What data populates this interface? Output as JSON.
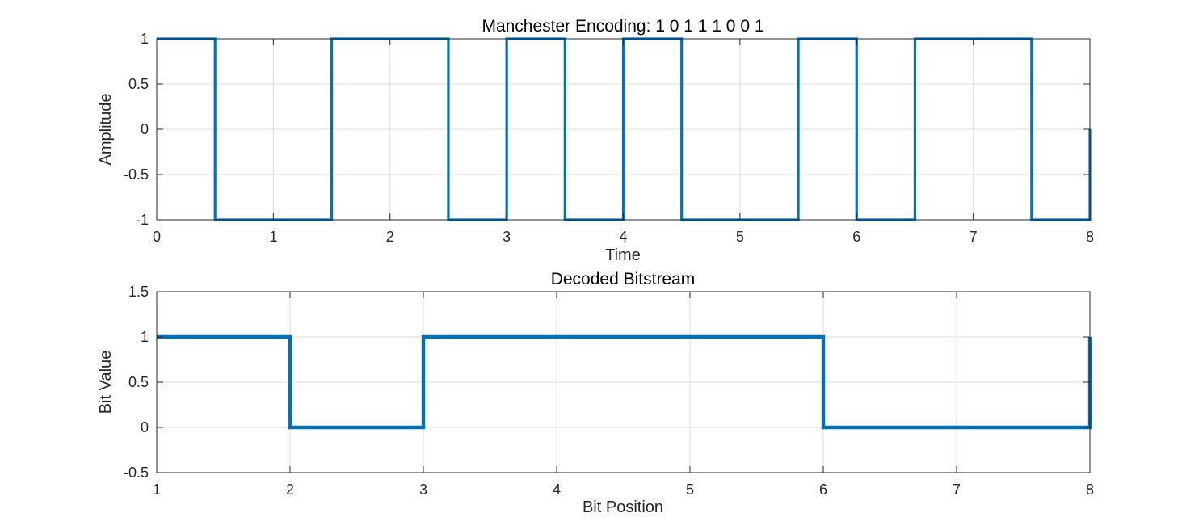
{
  "chart_data": [
    {
      "type": "line",
      "step": true,
      "title": "Manchester Encoding: 1 0 1 1 1 0 0 1",
      "xlabel": "Time",
      "ylabel": "Amplitude",
      "xlim": [
        0,
        8
      ],
      "ylim": [
        -1,
        1
      ],
      "xticks": [
        0,
        1,
        2,
        3,
        4,
        5,
        6,
        7,
        8
      ],
      "xtick_labels": [
        "0",
        "1",
        "2",
        "3",
        "4",
        "5",
        "6",
        "7",
        "8"
      ],
      "yticks": [
        -1,
        -0.5,
        0,
        0.5,
        1
      ],
      "ytick_labels": [
        "-1",
        "-0.5",
        "0",
        "0.5",
        "1"
      ],
      "grid": true,
      "series": [
        {
          "color": "#0072BD",
          "x": [
            0,
            0.5,
            0.5,
            1.5,
            1.5,
            2.5,
            2.5,
            3,
            3,
            3.5,
            3.5,
            4,
            4,
            4.5,
            4.5,
            5.5,
            5.5,
            6,
            6,
            6.5,
            6.5,
            7.5,
            7.5,
            8,
            8
          ],
          "y": [
            1,
            1,
            -1,
            -1,
            1,
            1,
            -1,
            -1,
            1,
            1,
            -1,
            -1,
            1,
            1,
            -1,
            -1,
            1,
            1,
            -1,
            -1,
            1,
            1,
            -1,
            -1,
            0
          ]
        }
      ]
    },
    {
      "type": "line",
      "step": true,
      "title": "Decoded Bitstream",
      "xlabel": "Bit Position",
      "ylabel": "Bit Value",
      "xlim": [
        1,
        8
      ],
      "ylim": [
        -0.5,
        1.5
      ],
      "xticks": [
        1,
        2,
        3,
        4,
        5,
        6,
        7,
        8
      ],
      "xtick_labels": [
        "1",
        "2",
        "3",
        "4",
        "5",
        "6",
        "7",
        "8"
      ],
      "yticks": [
        -0.5,
        0,
        0.5,
        1,
        1.5
      ],
      "ytick_labels": [
        "-0.5",
        "0",
        "0.5",
        "1",
        "1.5"
      ],
      "grid": true,
      "series": [
        {
          "color": "#0072BD",
          "x": [
            1,
            2,
            2,
            3,
            3,
            6,
            6,
            8,
            8
          ],
          "y": [
            1,
            1,
            0,
            0,
            1,
            1,
            0,
            0,
            1
          ]
        }
      ]
    }
  ]
}
